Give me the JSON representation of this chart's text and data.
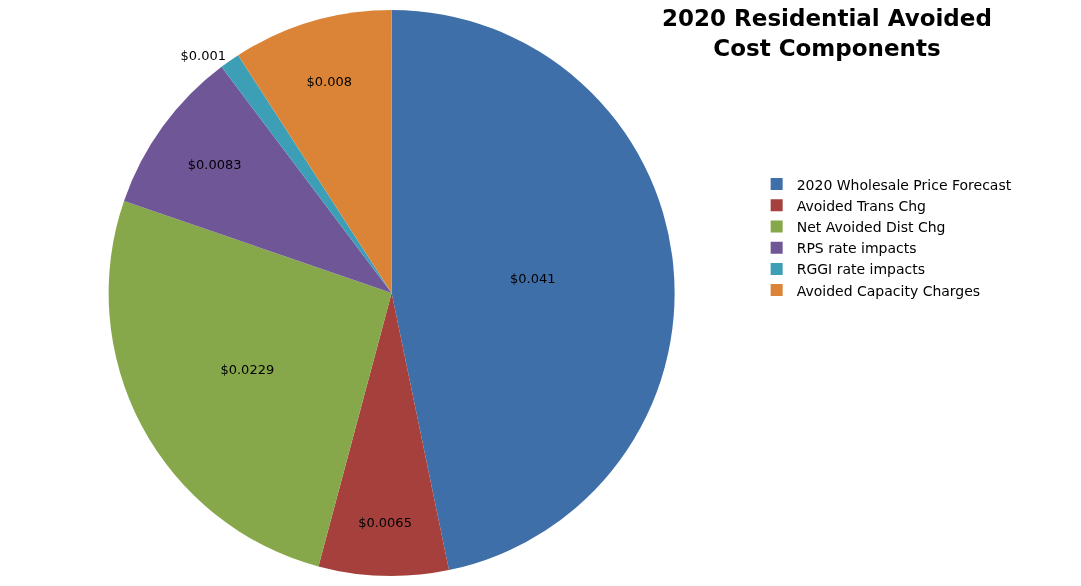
{
  "chart_data": {
    "type": "pie",
    "title": "2020 Residential Avoided\nCost Components",
    "categories": [
      "2020 Wholesale Price Forecast",
      "Avoided Trans Chg",
      "Net Avoided Dist Chg",
      "RPS rate impacts",
      "RGGI rate impacts",
      "Avoided Capacity Charges"
    ],
    "values": [
      0.041,
      0.0065,
      0.0229,
      0.0083,
      0.001,
      0.008
    ],
    "value_labels": [
      "$0.041",
      "$0.0065",
      "$0.0229",
      "$0.0083",
      "$0.001",
      "$0.008"
    ],
    "colors": [
      "#3f6fa8",
      "#a5403d",
      "#86a84a",
      "#6f5797",
      "#3d9fb5",
      "#db8438"
    ],
    "legend": "right"
  }
}
